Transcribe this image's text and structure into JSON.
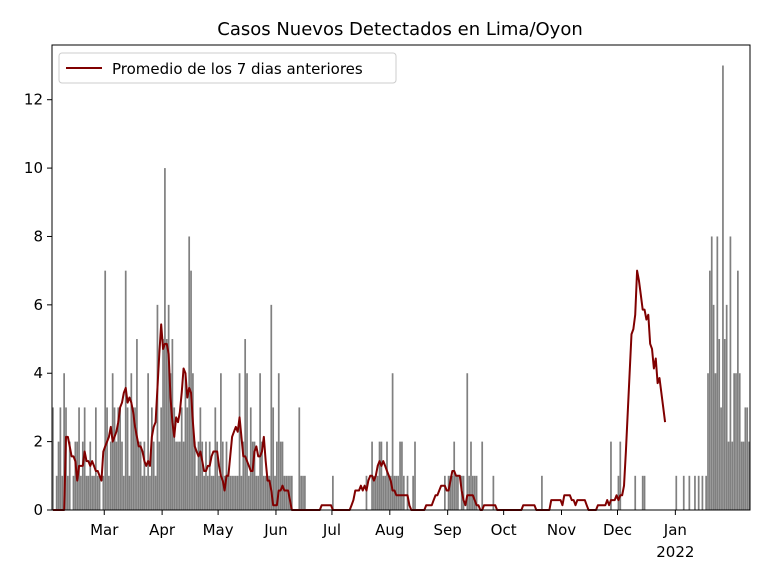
{
  "chart_data": {
    "type": "bar",
    "title": "Casos Nuevos Detectados en Lima/Oyon",
    "xlabel": "",
    "ylabel": "",
    "ylim": [
      0,
      13.6
    ],
    "yticks": [
      0,
      2,
      4,
      6,
      8,
      10,
      12
    ],
    "x_tick_labels": [
      {
        "label": "Mar",
        "day": 28
      },
      {
        "label": "Apr",
        "day": 59
      },
      {
        "label": "May",
        "day": 89
      },
      {
        "label": "Jun",
        "day": 120
      },
      {
        "label": "Jul",
        "day": 150
      },
      {
        "label": "Aug",
        "day": 181
      },
      {
        "label": "Sep",
        "day": 212
      },
      {
        "label": "Oct",
        "day": 242
      },
      {
        "label": "Nov",
        "day": 273
      },
      {
        "label": "Dec",
        "day": 303
      },
      {
        "label": "Jan",
        "day": 334
      }
    ],
    "x_year_label": "2022",
    "x_start_date": "2021-02-01",
    "legend": {
      "position": "top-left",
      "entries": [
        "Promedio de los 7 dias anteriores"
      ]
    },
    "colors": {
      "bars": "#808080",
      "line": "#800000"
    },
    "daily_cases": [
      3,
      0,
      1,
      2,
      3,
      1,
      4,
      3,
      1,
      2,
      0,
      1,
      2,
      2,
      3,
      1,
      2,
      3,
      1,
      1,
      2,
      1,
      1,
      3,
      1,
      1,
      0,
      1,
      7,
      3,
      1,
      2,
      4,
      3,
      2,
      3,
      3,
      2,
      1,
      7,
      3,
      1,
      4,
      3,
      3,
      5,
      2,
      2,
      1,
      2,
      1,
      4,
      1,
      3,
      2,
      1,
      6,
      2,
      3,
      5,
      10,
      5,
      6,
      4,
      5,
      3,
      2,
      2,
      2,
      3,
      2,
      4,
      3,
      8,
      7,
      4,
      2,
      1,
      2,
      3,
      2,
      1,
      2,
      1,
      2,
      1,
      1,
      3,
      2,
      1,
      4,
      2,
      1,
      2,
      1,
      1,
      1,
      1,
      1,
      1,
      4,
      1,
      2,
      5,
      4,
      1,
      3,
      2,
      2,
      1,
      1,
      4,
      2,
      1,
      1,
      1,
      1,
      6,
      3,
      1,
      2,
      4,
      2,
      2,
      1,
      1,
      1,
      1,
      1,
      0,
      0,
      0,
      3,
      1,
      1,
      1,
      0,
      0,
      0,
      0,
      0,
      0,
      0,
      0,
      0,
      0,
      0,
      0,
      0,
      0,
      1,
      0,
      0,
      0,
      0,
      0,
      0,
      0,
      0,
      0,
      0,
      0,
      0,
      0,
      0,
      0,
      0,
      0,
      1,
      0,
      0,
      2,
      1,
      1,
      1,
      2,
      2,
      1,
      1,
      2,
      1,
      1,
      4,
      1,
      1,
      1,
      2,
      2,
      1,
      0,
      1,
      0,
      0,
      1,
      2,
      0,
      0,
      0,
      0,
      0,
      0,
      0,
      0,
      0,
      0,
      0,
      0,
      0,
      0,
      0,
      1,
      0,
      1,
      1,
      1,
      2,
      1,
      1,
      0,
      1,
      1,
      0,
      4,
      1,
      2,
      1,
      1,
      1,
      0,
      0,
      2,
      0,
      0,
      0,
      0,
      0,
      1,
      0,
      0,
      0,
      0,
      0,
      0,
      0,
      0,
      0,
      0,
      0,
      0,
      0,
      0,
      0,
      0,
      0,
      0,
      0,
      0,
      0,
      0,
      0,
      0,
      0,
      1,
      0,
      0,
      0,
      0,
      0,
      0,
      0,
      0,
      0,
      0,
      0,
      0,
      0,
      0,
      0,
      0,
      0,
      0,
      0,
      0,
      0,
      0,
      0,
      0,
      0,
      0,
      0,
      0,
      0,
      0,
      0,
      0,
      0,
      0,
      0,
      0,
      2,
      0,
      0,
      0,
      1,
      2,
      0,
      0,
      0,
      0,
      0,
      0,
      0,
      1,
      0,
      0,
      0,
      1,
      1,
      0,
      0,
      0,
      0,
      0,
      0,
      0,
      0,
      0,
      0,
      0,
      0,
      0,
      0,
      0,
      0,
      1,
      0,
      0,
      0,
      1,
      0,
      0,
      1,
      0,
      0,
      1,
      0,
      1,
      0,
      1,
      0,
      1,
      4,
      7,
      8,
      6,
      4,
      8,
      5,
      3,
      13,
      5,
      6,
      2,
      8,
      2,
      4,
      4,
      7,
      4,
      2,
      2,
      3,
      3,
      2
    ],
    "rolling_avg_7d": [
      0,
      0,
      0,
      0,
      0,
      0,
      0,
      2.14,
      2.14,
      1.86,
      1.57,
      1.57,
      1.43,
      0.86,
      1.29,
      1.29,
      1.29,
      1.71,
      1.43,
      1.43,
      1.29,
      1.43,
      1.29,
      1.14,
      1.14,
      1.0,
      0.86,
      1.71,
      1.86,
      2.0,
      2.14,
      2.43,
      2.0,
      2.14,
      2.29,
      2.57,
      3.0,
      3.14,
      3.43,
      3.57,
      3.14,
      3.29,
      3.14,
      2.86,
      2.43,
      2.14,
      1.86,
      1.86,
      1.71,
      1.43,
      1.29,
      1.43,
      1.29,
      2.14,
      2.43,
      2.57,
      3.57,
      4.57,
      5.43,
      4.71,
      4.86,
      4.86,
      4.57,
      3.29,
      2.57,
      2.14,
      2.71,
      2.57,
      2.86,
      3.43,
      4.14,
      4.0,
      3.29,
      3.57,
      3.43,
      2.57,
      1.86,
      1.71,
      1.57,
      1.71,
      1.43,
      1.14,
      1.14,
      1.29,
      1.29,
      1.57,
      1.71,
      1.71,
      1.71,
      1.29,
      1.0,
      0.86,
      0.57,
      1.0,
      1.0,
      1.57,
      2.14,
      2.29,
      2.43,
      2.29,
      2.71,
      2.14,
      1.57,
      1.57,
      1.43,
      1.29,
      1.14,
      1.14,
      1.71,
      1.86,
      1.57,
      1.57,
      1.71,
      2.14,
      1.43,
      0.86,
      0.86,
      0.57,
      0.14,
      0.14,
      0.14,
      0.57,
      0.57,
      0.71,
      0.57,
      0.57,
      0.57,
      0.29,
      0,
      0,
      0,
      0,
      0,
      0,
      0,
      0,
      0,
      0,
      0,
      0,
      0,
      0,
      0,
      0,
      0.14,
      0.14,
      0.14,
      0.14,
      0.14,
      0.14,
      0,
      0,
      0,
      0,
      0,
      0,
      0,
      0,
      0,
      0,
      0.14,
      0.29,
      0.57,
      0.57,
      0.57,
      0.71,
      0.57,
      0.71,
      0.57,
      0.86,
      1.0,
      1.0,
      0.86,
      1.0,
      1.29,
      1.43,
      1.29,
      1.43,
      1.29,
      1.14,
      1.0,
      0.86,
      0.57,
      0.57,
      0.43,
      0.43,
      0.43,
      0.43,
      0.43,
      0.43,
      0.43,
      0.14,
      0,
      0,
      0,
      0,
      0,
      0,
      0,
      0,
      0.14,
      0.14,
      0.14,
      0.14,
      0.29,
      0.43,
      0.43,
      0.57,
      0.71,
      0.71,
      0.71,
      0.57,
      0.57,
      0.86,
      1.14,
      1.14,
      1.0,
      1.0,
      1.0,
      0.57,
      0.29,
      0.14,
      0.43,
      0.43,
      0.43,
      0.43,
      0.29,
      0.14,
      0.14,
      0,
      0,
      0.14,
      0.14,
      0.14,
      0.14,
      0.14,
      0.14,
      0.14,
      0,
      0,
      0,
      0,
      0,
      0,
      0,
      0,
      0,
      0,
      0,
      0,
      0,
      0,
      0.14,
      0.14,
      0.14,
      0.14,
      0.14,
      0.14,
      0.14,
      0,
      0,
      0,
      0,
      0,
      0,
      0,
      0,
      0.29,
      0.29,
      0.29,
      0.29,
      0.29,
      0.29,
      0.14,
      0.43,
      0.43,
      0.43,
      0.43,
      0.29,
      0.29,
      0.14,
      0.29,
      0.29,
      0.29,
      0.29,
      0.29,
      0.14,
      0,
      0,
      0,
      0,
      0,
      0.14,
      0.14,
      0.14,
      0.14,
      0.14,
      0.29,
      0.14,
      0.29,
      0.29,
      0.29,
      0.43,
      0.29,
      0.43,
      0.43,
      0.71,
      1.71,
      2.86,
      4.0,
      5.14,
      5.29,
      5.71,
      7.0,
      6.71,
      6.29,
      5.86,
      5.86,
      5.57,
      5.71,
      4.86,
      4.71,
      4.14,
      4.43,
      3.71,
      3.86,
      3.43,
      3.0,
      2.57
    ]
  }
}
